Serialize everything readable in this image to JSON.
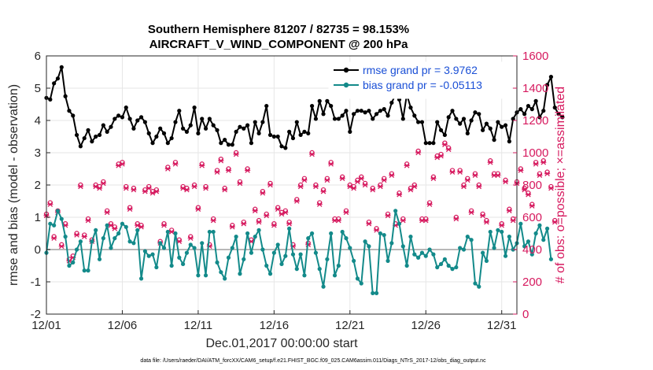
{
  "chart_data": {
    "type": "line",
    "title_line1": "Southern Hemisphere 81207 / 82735 = 98.153%",
    "title_line2": "AIRCRAFT_V_WIND_COMPONENT @ 200 hPa",
    "xlabel": "Dec.01,2017 00:00:00 start",
    "ylabel_left": "rmse and bias (model - observation)",
    "ylabel_right": "# of obs: o=possible; ×=assimilated",
    "footnote": "data file: /Users/raeder/DAI/ATM_forcXX/CAM6_setup/f.e21.FHIST_BGC.f09_025.CAM6assim.011/Diags_NTrS_2017-12/obs_diag_output.nc",
    "xlim": [
      0,
      31
    ],
    "ylim_left": [
      -2,
      6
    ],
    "ylim_right": [
      0,
      1600
    ],
    "x_ticks": [
      0,
      5,
      10,
      15,
      20,
      25,
      30
    ],
    "x_tick_labels": [
      "12/01",
      "12/06",
      "12/11",
      "12/16",
      "12/21",
      "12/26",
      "12/31"
    ],
    "y_left_ticks": [
      -2,
      -1,
      0,
      1,
      2,
      3,
      4,
      5,
      6
    ],
    "y_left_tick_labels": [
      "-2",
      "-1",
      "0",
      "1",
      "2",
      "3",
      "4",
      "5",
      "6"
    ],
    "y_right_ticks": [
      0,
      200,
      400,
      600,
      800,
      1000,
      1200,
      1400,
      1600
    ],
    "y_right_tick_labels": [
      "0",
      "200",
      "400",
      "600",
      "800",
      "1000",
      "1200",
      "1400",
      "1600"
    ],
    "legend": [
      {
        "label": "rmse grand pr = 3.9762",
        "color": "#000000"
      },
      {
        "label": "bias grand pr = -0.05113",
        "color": "#138a8a"
      }
    ],
    "colors": {
      "rmse": "#000000",
      "bias": "#138a8a",
      "obs": "#d6195e",
      "zero": "#b8b8b8",
      "grid": "#e6e6e6"
    },
    "series": [
      {
        "name": "rmse",
        "x_start": 0,
        "dx": 0.25,
        "values": [
          4.7,
          4.65,
          5.15,
          5.3,
          5.65,
          4.75,
          4.3,
          4.15,
          3.55,
          3.2,
          3.45,
          3.7,
          3.35,
          3.5,
          3.55,
          3.85,
          3.65,
          3.8,
          4.05,
          4.15,
          4.1,
          4.4,
          4.05,
          3.75,
          4.0,
          4.1,
          3.95,
          3.6,
          3.3,
          3.5,
          3.75,
          3.6,
          3.3,
          3.45,
          3.95,
          4.3,
          3.75,
          3.65,
          3.85,
          4.4,
          3.6,
          4.05,
          3.75,
          4.05,
          3.85,
          3.7,
          3.3,
          3.4,
          3.25,
          3.25,
          3.65,
          3.8,
          3.75,
          3.85,
          3.3,
          3.95,
          3.6,
          3.95,
          4.45,
          3.55,
          3.5,
          3.5,
          3.2,
          3.15,
          3.65,
          3.45,
          3.95,
          3.55,
          3.65,
          3.6,
          4.45,
          4.05,
          4.6,
          4.2,
          4.6,
          4.45,
          4.05,
          4.05,
          4.15,
          4.3,
          3.65,
          4.2,
          4.3,
          4.3,
          4.25,
          4.3,
          4.05,
          4.2,
          4.3,
          4.35,
          4.15,
          4.55,
          4.8,
          4.65,
          4.05,
          4.8,
          4.4,
          4.15,
          3.95,
          3.95,
          3.3,
          3.3,
          3.3,
          3.95,
          3.7,
          3.55,
          4.1,
          4.3,
          4.05,
          3.9,
          4.05,
          3.6,
          4.0,
          4.25,
          4.2,
          3.7,
          3.9,
          3.75,
          3.4,
          3.95,
          3.8,
          3.85,
          3.35,
          4.05,
          4.25,
          4.35,
          4.2,
          4.45,
          4.35,
          4.6,
          4.1,
          4.3,
          5.1,
          5.35,
          4.4,
          4.2,
          4.1
        ]
      },
      {
        "name": "bias",
        "x_start": 0,
        "dx": 0.25,
        "values": [
          -0.1,
          0.8,
          0.75,
          1.2,
          0.95,
          0.4,
          -0.5,
          -0.4,
          0.0,
          0.25,
          -0.65,
          -0.65,
          0.25,
          0.6,
          -0.3,
          0.35,
          0.75,
          0.05,
          0.35,
          0.5,
          0.8,
          0.7,
          0.25,
          0.2,
          0.6,
          -0.9,
          -0.05,
          -0.2,
          -0.15,
          -0.55,
          0.2,
          0.05,
          0.55,
          -0.5,
          0.5,
          -0.25,
          -0.45,
          -0.1,
          0.15,
          0.05,
          -0.8,
          0.2,
          -0.8,
          0.55,
          0.55,
          -0.4,
          -0.7,
          -0.9,
          -0.25,
          0.05,
          0.4,
          -0.75,
          -0.3,
          0.5,
          -0.1,
          0.4,
          0.6,
          0.0,
          -0.5,
          -0.75,
          -0.1,
          0.15,
          -0.45,
          -0.2,
          0.65,
          -0.15,
          -0.6,
          -0.15,
          -0.8,
          0.35,
          0.5,
          -0.1,
          -0.6,
          -1.15,
          -0.3,
          0.5,
          -0.8,
          -0.5,
          0.55,
          0.35,
          0.05,
          -0.35,
          -0.9,
          -1.05,
          0.25,
          0.1,
          -1.35,
          -1.35,
          0.5,
          0.45,
          -0.35,
          0.2,
          1.2,
          0.8,
          0.1,
          -0.5,
          0.4,
          -0.15,
          -0.25,
          -0.1,
          -0.2,
          0.0,
          -0.15,
          -0.55,
          -0.45,
          -0.3,
          -0.5,
          -0.6,
          -0.55,
          0.05,
          0.0,
          0.4,
          0.3,
          -1.05,
          -1.15,
          -0.1,
          -0.35,
          0.55,
          0.05,
          0.6,
          0.55,
          -0.2,
          0.4,
          0.0,
          0.2,
          0.8,
          0.1,
          0.25,
          -0.15,
          0.5,
          0.75,
          0.3,
          0.65,
          -0.3
        ]
      },
      {
        "name": "obs_possible",
        "x_start": 0,
        "dx": 0.25,
        "values": [
          620,
          690,
          480,
          640,
          430,
          560,
          340,
          360,
          500,
          800,
          490,
          590,
          460,
          800,
          790,
          820,
          640,
          560,
          540,
          930,
          940,
          790,
          660,
          780,
          560,
          550,
          770,
          790,
          760,
          770,
          450,
          560,
          910,
          520,
          940,
          460,
          790,
          780,
          480,
          800,
          660,
          930,
          790,
          430,
          590,
          890,
          960,
          780,
          900,
          550,
          1000,
          820,
          570,
          900,
          460,
          650,
          580,
          760,
          620,
          810,
          560,
          660,
          630,
          640,
          570,
          430,
          710,
          800,
          840,
          440,
          1000,
          800,
          690,
          770,
          840,
          940,
          590,
          590,
          850,
          640,
          800,
          790,
          830,
          850,
          810,
          570,
          780,
          530,
          800,
          840,
          620,
          870,
          560,
          750,
          590,
          930,
          780,
          800,
          1010,
          590,
          590,
          690,
          850,
          980,
          990,
          1060,
          1030,
          890,
          600,
          890,
          800,
          840,
          640,
          870,
          800,
          620,
          580,
          950,
          870,
          870,
          560,
          830,
          650,
          590,
          820,
          900,
          780,
          750,
          680,
          940,
          870,
          950,
          880,
          790,
          580
        ]
      },
      {
        "name": "obs_assimilated",
        "x_start": 0,
        "dx": 0.25,
        "values": [
          610,
          680,
          470,
          630,
          420,
          550,
          330,
          350,
          490,
          790,
          480,
          580,
          450,
          790,
          780,
          810,
          630,
          550,
          530,
          920,
          930,
          780,
          650,
          770,
          550,
          540,
          760,
          780,
          750,
          760,
          440,
          550,
          900,
          510,
          930,
          450,
          780,
          770,
          470,
          790,
          650,
          920,
          780,
          420,
          580,
          880,
          950,
          770,
          890,
          540,
          990,
          810,
          560,
          890,
          450,
          640,
          570,
          750,
          610,
          800,
          550,
          650,
          620,
          630,
          560,
          420,
          700,
          790,
          830,
          430,
          990,
          790,
          680,
          760,
          830,
          930,
          580,
          580,
          840,
          630,
          790,
          780,
          820,
          840,
          800,
          560,
          770,
          520,
          790,
          830,
          610,
          860,
          550,
          740,
          580,
          920,
          770,
          790,
          1000,
          580,
          580,
          680,
          840,
          970,
          980,
          1050,
          1020,
          880,
          590,
          880,
          790,
          830,
          630,
          860,
          790,
          610,
          570,
          940,
          860,
          860,
          550,
          820,
          640,
          580,
          810,
          890,
          770,
          740,
          670,
          930,
          860,
          940,
          870,
          780,
          570
        ]
      }
    ]
  }
}
